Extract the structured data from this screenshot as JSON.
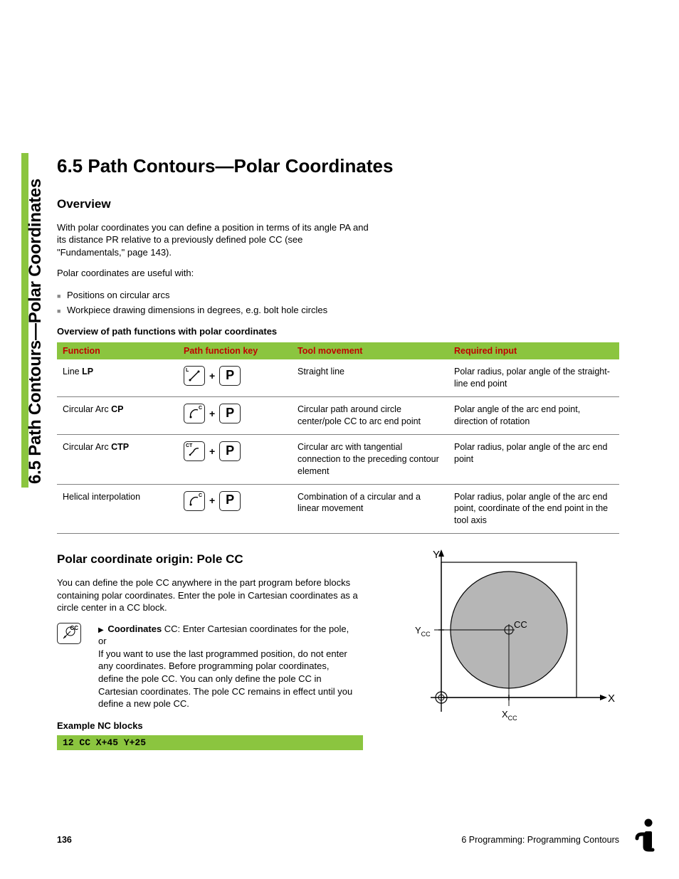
{
  "colors": {
    "accent": "#8bc53f",
    "header_text": "#c00000",
    "bullet": "#888888",
    "rule": "#808080",
    "circle_fill": "#b6b6b6"
  },
  "side_title": "6.5 Path Contours—Polar Coordinates",
  "main_title": "6.5  Path Contours—Polar Coordinates",
  "overview": {
    "heading": "Overview",
    "para1": "With polar coordinates you can define a position in terms of its angle PA and its distance PR relative to a previously defined pole CC (see \"Fundamentals,\" page 143).",
    "para2": "Polar coordinates are useful with:",
    "bullets": [
      "Positions on circular arcs",
      "Workpiece drawing dimensions in degrees, e.g. bolt hole circles"
    ]
  },
  "table": {
    "title": "Overview of path functions with polar coordinates",
    "headers": [
      "Function",
      "Path function key",
      "Tool movement",
      "Required input"
    ],
    "rows": [
      {
        "function_pre": "Line ",
        "function_bold": "LP",
        "key1": "L",
        "movement": "Straight line",
        "required": "Polar radius, polar angle of the straight-line end point"
      },
      {
        "function_pre": "Circular Arc ",
        "function_bold": "CP",
        "key1": "C",
        "movement": "Circular path around circle center/pole CC to arc end point",
        "required": "Polar angle of the arc end point, direction of rotation"
      },
      {
        "function_pre": "Circular Arc ",
        "function_bold": "CTP",
        "key1": "CT",
        "movement": "Circular arc with tangential connection to the preceding contour element",
        "required": "Polar radius, polar angle of the arc end point"
      },
      {
        "function_pre": "Helical interpolation",
        "function_bold": "",
        "key1": "C",
        "movement": "Combination of a circular and a linear movement",
        "required": "Polar radius, polar angle of the arc end point, coordinate of the end point in the tool axis"
      }
    ],
    "p_key": "P",
    "plus": "+"
  },
  "polar_origin": {
    "heading": "Polar coordinate origin: Pole CC",
    "intro": "You can define the pole CC anywhere in the part program before blocks containing polar coordinates. Enter the pole in Cartesian coordinates as a circle center in a CC block.",
    "cc_key": "CC",
    "coord_bold": "Coordinates",
    "coord_rest": " CC: Enter Cartesian coordinates for the pole, or",
    "coord_para2": "If you want to use the last programmed position, do not enter any coordinates. Before programming polar coordinates, define the pole CC. You can only define the pole CC in Cartesian coordinates. The pole CC remains in effect until you define a new pole CC.",
    "example_title": "Example NC blocks",
    "example_code": "12 CC X+45 Y+25"
  },
  "diagram": {
    "y_label": "Y",
    "x_label": "X",
    "cc_label": "CC",
    "ycc_label": "Y",
    "ycc_sub": "CC",
    "xcc_label": "X",
    "xcc_sub": "CC"
  },
  "footer": {
    "page": "136",
    "chapter": "6 Programming: Programming Contours"
  }
}
